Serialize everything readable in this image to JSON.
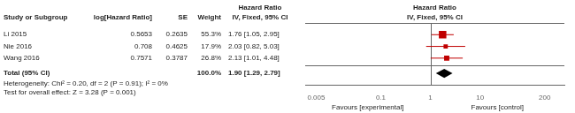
{
  "chart_data": {
    "type": "forest",
    "header": "Hazard Ratio",
    "subheader": "IV, Fixed, 95% CI",
    "columns": [
      "Study or Subgroup",
      "log[Hazard Ratio]",
      "SE",
      "Weight",
      "IV, Fixed, 95% CI"
    ],
    "categories": [
      "Li 2015",
      "Nie 2016",
      "Wang 2016"
    ],
    "log_hr": [
      0.5653,
      0.708,
      0.7571
    ],
    "se": [
      0.2635,
      0.4625,
      0.3787
    ],
    "weights": [
      55.3,
      17.9,
      26.8
    ],
    "weight_labels": [
      "55.3%",
      "17.9%",
      "26.8%"
    ],
    "values": [
      1.76,
      2.03,
      2.13
    ],
    "ci_low": [
      1.05,
      0.82,
      1.01
    ],
    "ci_high": [
      2.95,
      5.03,
      4.48
    ],
    "value_labels": [
      "1.76 [1.05, 2.95]",
      "2.03 [0.82, 5.03]",
      "2.13 [1.01, 4.48]"
    ],
    "color": "#C00000",
    "total": {
      "label": "Total (95% CI)",
      "value": 1.9,
      "ci_low": 1.29,
      "ci_high": 2.79,
      "value_label": "1.90 [1.29, 2.79]",
      "weight": 100.0,
      "weight_label": "100.0%",
      "color": "#000000"
    },
    "annotations": [
      "Heterogeneity: Chi² = 0.20, df = 2 (P = 0.91); I² = 0%",
      "Test for overall effect: Z = 3.28 (P = 0.001)"
    ],
    "favours": [
      "Favours [experimental]",
      "Favours [control]"
    ],
    "reference_line": 1,
    "log": "x",
    "xlim": [
      0.003,
      500
    ],
    "xticks": [
      0.005,
      0.1,
      1,
      10,
      200
    ],
    "grid": false
  }
}
